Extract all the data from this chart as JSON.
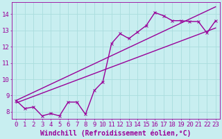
{
  "xlabel": "Windchill (Refroidissement éolien,°C)",
  "bg_color": "#c8eef0",
  "line_color": "#990099",
  "grid_color": "#aadddd",
  "xlim": [
    -0.5,
    23.5
  ],
  "ylim": [
    7.55,
    14.75
  ],
  "xticks": [
    0,
    1,
    2,
    3,
    4,
    5,
    6,
    7,
    8,
    9,
    10,
    11,
    12,
    13,
    14,
    15,
    16,
    17,
    18,
    19,
    20,
    21,
    22,
    23
  ],
  "yticks": [
    8,
    9,
    10,
    11,
    12,
    13,
    14
  ],
  "zigzag_x": [
    0,
    1,
    2,
    3,
    4,
    5,
    6,
    7,
    8,
    9,
    10,
    11,
    12,
    13,
    14,
    15,
    16,
    17,
    18,
    19,
    20,
    21,
    22,
    23
  ],
  "zigzag_y": [
    8.7,
    8.2,
    8.3,
    7.75,
    7.9,
    7.75,
    8.6,
    8.6,
    7.85,
    9.3,
    9.85,
    12.2,
    12.8,
    12.5,
    12.9,
    13.3,
    14.1,
    13.9,
    13.6,
    13.6,
    13.55,
    13.55,
    12.85,
    13.6
  ],
  "trend1_x": [
    0,
    23
  ],
  "trend1_y": [
    8.55,
    13.15
  ],
  "trend2_x": [
    0,
    23
  ],
  "trend2_y": [
    8.7,
    14.45
  ],
  "line_width": 1.0,
  "marker_size": 3.0,
  "font_size": 6.5,
  "xlabel_fontsize": 7.0
}
